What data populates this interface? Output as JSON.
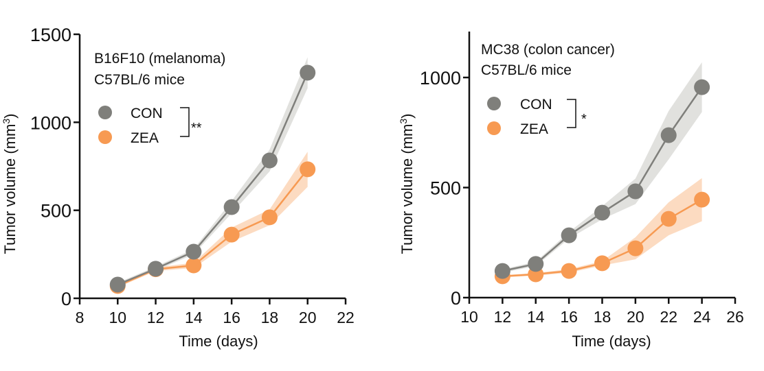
{
  "colors": {
    "CON": "#7f7f7b",
    "ZEA": "#f79a52",
    "CON_band": "#d9d9d6",
    "ZEA_band": "#fbd2b1",
    "axis": "#111111"
  },
  "chart_data": [
    {
      "type": "line",
      "annotation": [
        "B16F10 (melanoma)",
        "C57BL/6 mice"
      ],
      "xlabel": "Time (days)",
      "ylabel": "Tumor volume (mm",
      "ylabel_sup": "3",
      "ylabel_close": ")",
      "xlim": [
        8,
        22
      ],
      "ylim": [
        0,
        1500
      ],
      "xticks": [
        "8",
        "10",
        "12",
        "14",
        "16",
        "18",
        "20",
        "22"
      ],
      "yticks": [
        "0",
        "500",
        "1000",
        "1500"
      ],
      "grid": false,
      "legend_placement": "top-left",
      "significance": "**",
      "x": [
        10,
        12,
        14,
        16,
        18,
        20
      ],
      "series": [
        {
          "name": "CON",
          "values": [
            78,
            168,
            265,
            518,
            783,
            1282
          ],
          "error": [
            10,
            12,
            15,
            35,
            62,
            88
          ]
        },
        {
          "name": "ZEA",
          "values": [
            70,
            165,
            187,
            362,
            460,
            733
          ],
          "error": [
            8,
            10,
            15,
            40,
            45,
            100
          ]
        }
      ]
    },
    {
      "type": "line",
      "annotation": [
        "MC38 (colon cancer)",
        "C57BL/6 mice"
      ],
      "xlabel": "Time (days)",
      "ylabel": "Tumor volume (mm",
      "ylabel_sup": "3",
      "ylabel_close": ")",
      "xlim": [
        10,
        26
      ],
      "ylim": [
        0,
        1200
      ],
      "xticks": [
        "10",
        "12",
        "14",
        "16",
        "18",
        "20",
        "22",
        "24",
        "26"
      ],
      "yticks": [
        "0",
        "500",
        "1000"
      ],
      "grid": false,
      "legend_placement": "top-left",
      "significance": "*",
      "x": [
        12,
        14,
        16,
        18,
        20,
        22,
        24
      ],
      "series": [
        {
          "name": "CON",
          "values": [
            121,
            153,
            283,
            386,
            483,
            738,
            956
          ],
          "error": [
            8,
            10,
            15,
            30,
            58,
            110,
            113
          ]
        },
        {
          "name": "ZEA",
          "values": [
            97,
            106,
            121,
            156,
            224,
            358,
            445
          ],
          "error": [
            5,
            6,
            8,
            10,
            50,
            75,
            98
          ]
        }
      ]
    }
  ]
}
